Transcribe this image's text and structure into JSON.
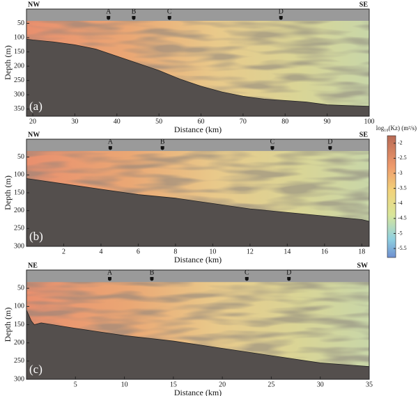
{
  "chart_data": [
    {
      "type": "section",
      "panel_label": "(a)",
      "left_label": "NW",
      "right_label": "SE",
      "xlabel": "Distance (km)",
      "ylabel": "Depth (m)",
      "xlim": [
        18.5,
        100
      ],
      "xticks": [
        20,
        30,
        40,
        50,
        60,
        70,
        80,
        90,
        100
      ],
      "ylim": [
        0,
        375
      ],
      "yticks": [
        50,
        100,
        150,
        200,
        250,
        300,
        350
      ],
      "stations": [
        {
          "label": "A",
          "x": 38
        },
        {
          "label": "B",
          "x": 44
        },
        {
          "label": "C",
          "x": 52.5
        },
        {
          "label": "D",
          "x": 79
        }
      ],
      "seafloor": {
        "distance": [
          18.5,
          20,
          25,
          30,
          35,
          40,
          45,
          50,
          55,
          60,
          65,
          70,
          75,
          80,
          85,
          90,
          95,
          100
        ],
        "depth": [
          105,
          108,
          115,
          125,
          140,
          165,
          190,
          215,
          245,
          270,
          290,
          305,
          315,
          320,
          325,
          335,
          338,
          340
        ]
      }
    },
    {
      "type": "section",
      "panel_label": "(b)",
      "left_label": "NW",
      "right_label": "SE",
      "xlabel": "Distance (km)",
      "ylabel": "Depth (m)",
      "xlim": [
        0,
        18.4
      ],
      "xticks": [
        2,
        4,
        6,
        8,
        10,
        12,
        14,
        16,
        18
      ],
      "ylim": [
        0,
        300
      ],
      "yticks": [
        50,
        100,
        150,
        200,
        250,
        300
      ],
      "stations": [
        {
          "label": "A",
          "x": 4.5
        },
        {
          "label": "B",
          "x": 7.3
        },
        {
          "label": "C",
          "x": 13.2
        },
        {
          "label": "D",
          "x": 16.3
        }
      ],
      "seafloor": {
        "distance": [
          0,
          2,
          4,
          6,
          8,
          10,
          12,
          14,
          16,
          18,
          18.4
        ],
        "depth": [
          110,
          125,
          140,
          155,
          165,
          180,
          195,
          205,
          215,
          225,
          230
        ]
      }
    },
    {
      "type": "section",
      "panel_label": "(c)",
      "left_label": "NE",
      "right_label": "SW",
      "xlabel": "Distance (km)",
      "ylabel": "Depth (m)",
      "xlim": [
        0,
        35
      ],
      "xticks": [
        5,
        10,
        15,
        20,
        25,
        30,
        35
      ],
      "ylim": [
        0,
        300
      ],
      "yticks": [
        50,
        100,
        150,
        200,
        250,
        300
      ],
      "stations": [
        {
          "label": "A",
          "x": 8.5
        },
        {
          "label": "B",
          "x": 12.8
        },
        {
          "label": "C",
          "x": 22.5
        },
        {
          "label": "D",
          "x": 26.8
        }
      ],
      "seafloor": {
        "distance": [
          0,
          0.5,
          0.8,
          1.5,
          5,
          10,
          15,
          20,
          25,
          30,
          35
        ],
        "depth": [
          110,
          140,
          150,
          145,
          160,
          180,
          195,
          215,
          235,
          255,
          265
        ]
      }
    }
  ],
  "colorbar": {
    "label": "log₁₀(Kz) (m²/s)",
    "lim": [
      -5.8,
      -1.75
    ],
    "ticks": [
      -2,
      -2.5,
      -3,
      -3.5,
      -4,
      -4.5,
      -5,
      -5.5
    ]
  }
}
